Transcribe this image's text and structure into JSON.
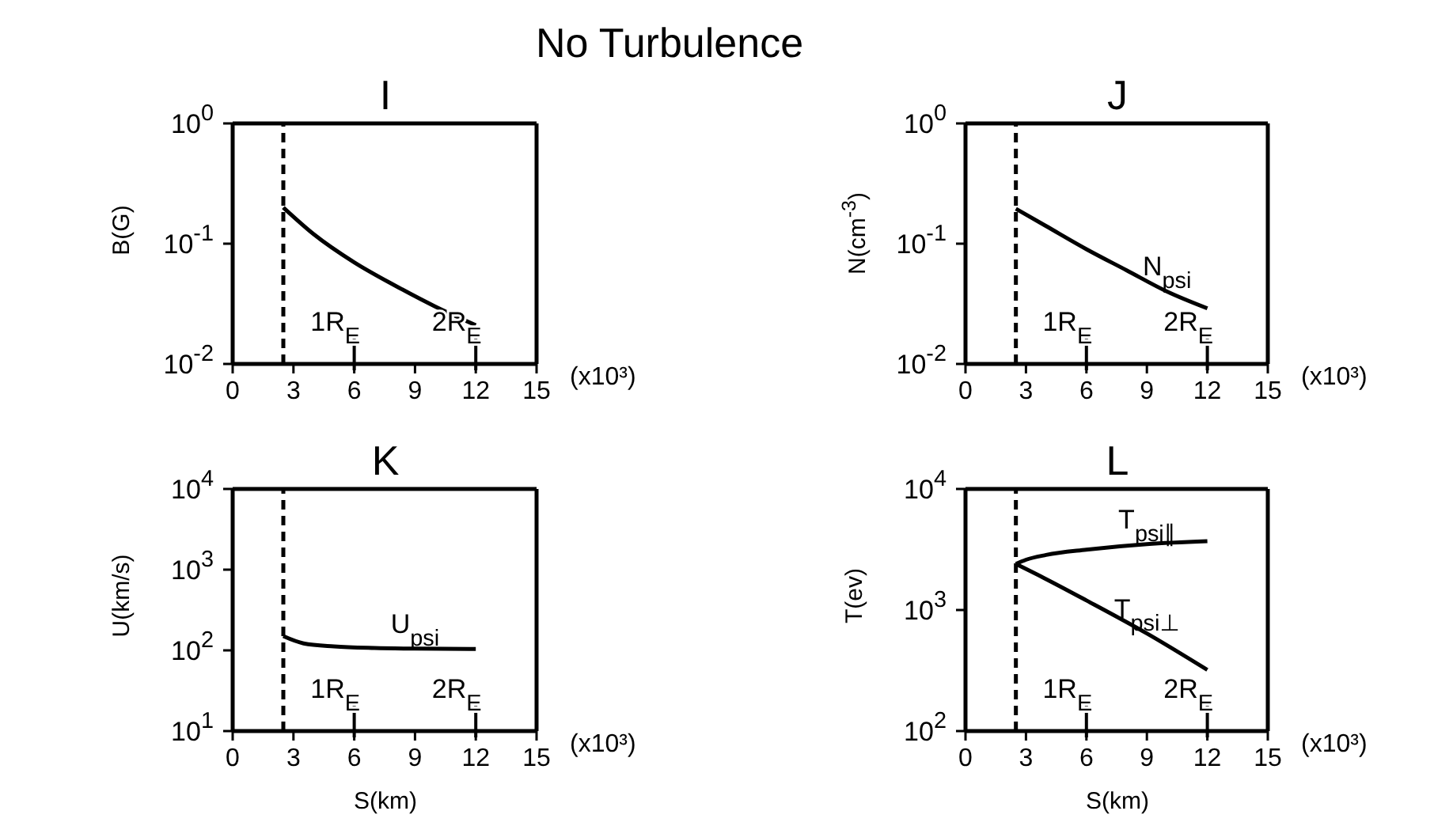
{
  "chart_data": [
    {
      "type": "line",
      "title": "No Turbulence",
      "subtitle": "I",
      "ylabel": "B(G)",
      "log": "y",
      "xlim": [
        0,
        15
      ],
      "xticks": [
        0,
        3,
        6,
        9,
        12,
        15
      ],
      "ylim": [
        0.01,
        1
      ],
      "yticks": [
        {
          "value": 0.01,
          "label": "10$^{-2}$"
        },
        {
          "value": 0.1,
          "label": "10$^{-1}$"
        },
        {
          "value": 1,
          "label": "10$^{0}$"
        }
      ],
      "line_style": "solid",
      "series": [
        {
          "color": "#000000",
          "x": [
            2.5,
            4,
            6,
            8,
            10,
            12
          ],
          "values": [
            0.2,
            0.12,
            0.07,
            0.045,
            0.03,
            0.021
          ]
        }
      ],
      "ref_lines": [
        {
          "axis": "x",
          "value": 2.5,
          "line_style": "dashed",
          "color": "#000000"
        },
        {
          "axis": "x",
          "value": 6,
          "label": "1R$_{E}$",
          "color": "#000000"
        },
        {
          "axis": "x",
          "value": 12,
          "label": "2R$_{E}$",
          "color": "#000000"
        }
      ],
      "annotations": [
        "(x10³)"
      ]
    },
    {
      "type": "line",
      "subtitle": "J",
      "ylabel": "N(cm$^{-3}$)",
      "log": "y",
      "xlim": [
        0,
        15
      ],
      "xticks": [
        0,
        3,
        6,
        9,
        12,
        15
      ],
      "ylim": [
        0.01,
        1
      ],
      "yticks": [
        {
          "value": 0.01,
          "label": "10$^{-2}$"
        },
        {
          "value": 0.1,
          "label": "10$^{-1}$"
        },
        {
          "value": 1,
          "label": "10$^{0}$"
        }
      ],
      "line_style": "solid",
      "series": [
        {
          "name": "N$_{psi}$",
          "color": "#000000",
          "x": [
            2.5,
            4,
            6,
            8,
            10,
            12
          ],
          "values": [
            0.195,
            0.14,
            0.09,
            0.06,
            0.04,
            0.029
          ]
        }
      ],
      "ref_lines": [
        {
          "axis": "x",
          "value": 2.5,
          "line_style": "dashed",
          "color": "#000000"
        },
        {
          "axis": "x",
          "value": 6,
          "label": "1R$_{E}$",
          "color": "#000000"
        },
        {
          "axis": "x",
          "value": 12,
          "label": "2R$_{E}$",
          "color": "#000000"
        }
      ],
      "annotations": [
        "(x10³)"
      ]
    },
    {
      "type": "line",
      "subtitle": "K",
      "xlabel": "S(km)",
      "ylabel": "U(km/s)",
      "log": "y",
      "xlim": [
        0,
        15
      ],
      "xticks": [
        0,
        3,
        6,
        9,
        12,
        15
      ],
      "ylim": [
        10,
        10000
      ],
      "yticks": [
        {
          "value": 10,
          "label": "10$^{1}$"
        },
        {
          "value": 100,
          "label": "10$^{2}$"
        },
        {
          "value": 1000,
          "label": "10$^{3}$"
        },
        {
          "value": 10000,
          "label": "10$^{4}$"
        }
      ],
      "line_style": "solid",
      "series": [
        {
          "name": "U$_{psi}$",
          "color": "#000000",
          "x": [
            2.5,
            3.5,
            5,
            7,
            9,
            12
          ],
          "values": [
            150,
            122,
            112,
            107,
            105,
            104
          ]
        }
      ],
      "ref_lines": [
        {
          "axis": "x",
          "value": 2.5,
          "line_style": "dashed",
          "color": "#000000"
        },
        {
          "axis": "x",
          "value": 6,
          "label": "1R$_{E}$",
          "color": "#000000"
        },
        {
          "axis": "x",
          "value": 12,
          "label": "2R$_{E}$",
          "color": "#000000"
        }
      ],
      "annotations": [
        "(x10³)"
      ]
    },
    {
      "type": "line",
      "subtitle": "L",
      "xlabel": "S(km)",
      "ylabel": "T(ev)",
      "log": "y",
      "xlim": [
        0,
        15
      ],
      "xticks": [
        0,
        3,
        6,
        9,
        12,
        15
      ],
      "ylim": [
        100,
        10000
      ],
      "yticks": [
        {
          "value": 100,
          "label": "10$^{2}$"
        },
        {
          "value": 1000,
          "label": "10$^{3}$"
        },
        {
          "value": 10000,
          "label": "10$^{4}$"
        }
      ],
      "line_style": "solid",
      "series": [
        {
          "name": "T$_{psi∥}$",
          "color": "#000000",
          "x": [
            2.5,
            3,
            4,
            6,
            9,
            12
          ],
          "values": [
            2400,
            2600,
            2850,
            3150,
            3500,
            3700
          ]
        },
        {
          "name": "T$_{psi⊥}$",
          "color": "#000000",
          "x": [
            2.5,
            4,
            6,
            9,
            12
          ],
          "values": [
            2400,
            1800,
            1200,
            640,
            320
          ]
        }
      ],
      "ref_lines": [
        {
          "axis": "x",
          "value": 2.5,
          "line_style": "dashed",
          "color": "#000000"
        },
        {
          "axis": "x",
          "value": 6,
          "label": "1R$_{E}$",
          "color": "#000000"
        },
        {
          "axis": "x",
          "value": 12,
          "label": "2R$_{E}$",
          "color": "#000000"
        }
      ],
      "annotations": [
        "(x10³)"
      ]
    }
  ]
}
